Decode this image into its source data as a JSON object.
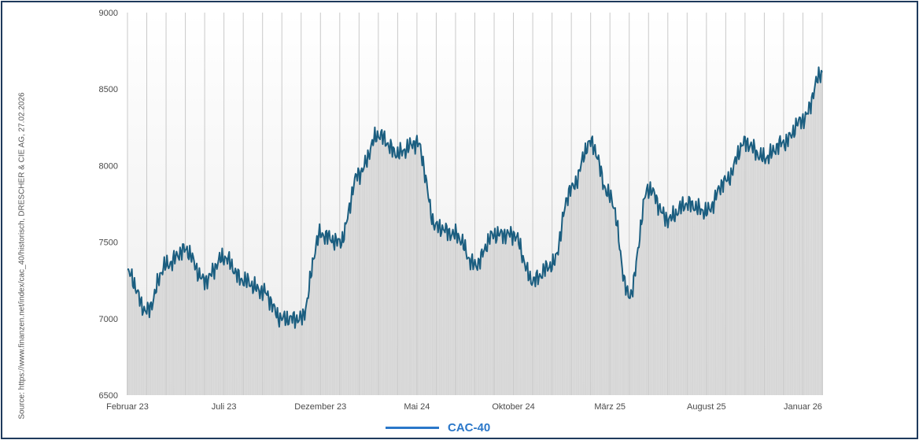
{
  "source_note": "Source: https://www.finanzen.net/index/cac_40/historisch, DRESCHER & CIE AG, 27.02.2026",
  "colors": {
    "line": "#1b5e80",
    "legend": "#2a77c9",
    "bars": "#d6d6d6",
    "frame": "#1f3a5c"
  },
  "chart_data": {
    "type": "line",
    "title": "",
    "xlabel": "",
    "ylabel": "",
    "ylim": [
      6500,
      9000
    ],
    "y_ticks": [
      "9000",
      "8500",
      "8000",
      "7500",
      "7000",
      "6500"
    ],
    "y_tick_values": [
      9000,
      8500,
      8000,
      7500,
      7000,
      6500
    ],
    "x_ticks": [
      "Februar 23",
      "Juli 23",
      "Dezember 23",
      "Mai 24",
      "Oktober 24",
      "März 25",
      "August 25",
      "Januar 26"
    ],
    "x_range": [
      "Feb 2023",
      "Feb 2026"
    ],
    "grid": "vertical monthly lines",
    "legend_position": "bottom",
    "series": [
      {
        "name": "CAC-40",
        "months": [
          "Feb 23",
          "Mär 23",
          "Apr 23",
          "Mai 23",
          "Jun 23",
          "Jul 23",
          "Aug 23",
          "Sep 23",
          "Okt 23",
          "Nov 23",
          "Dez 23",
          "Jan 24",
          "Feb 24",
          "Mär 24",
          "Apr 24",
          "Mai 24",
          "Jun 24",
          "Jul 24",
          "Aug 24",
          "Sep 24",
          "Okt 24",
          "Nov 24",
          "Dez 24",
          "Jan 25",
          "Feb 25",
          "Mär 25",
          "Apr 25",
          "Mai 25",
          "Jun 25",
          "Jul 25",
          "Aug 25",
          "Sep 25",
          "Okt 25",
          "Nov 25",
          "Dez 25",
          "Jan 26",
          "Feb 26"
        ],
        "values": [
          7300,
          7050,
          7350,
          7450,
          7250,
          7400,
          7250,
          7180,
          7000,
          7000,
          7550,
          7500,
          7950,
          8200,
          8080,
          8150,
          7600,
          7550,
          7350,
          7550,
          7550,
          7250,
          7350,
          7850,
          8150,
          7800,
          7150,
          7850,
          7650,
          7750,
          7700,
          7900,
          8150,
          8050,
          8150,
          8300,
          8610
        ]
      }
    ]
  }
}
